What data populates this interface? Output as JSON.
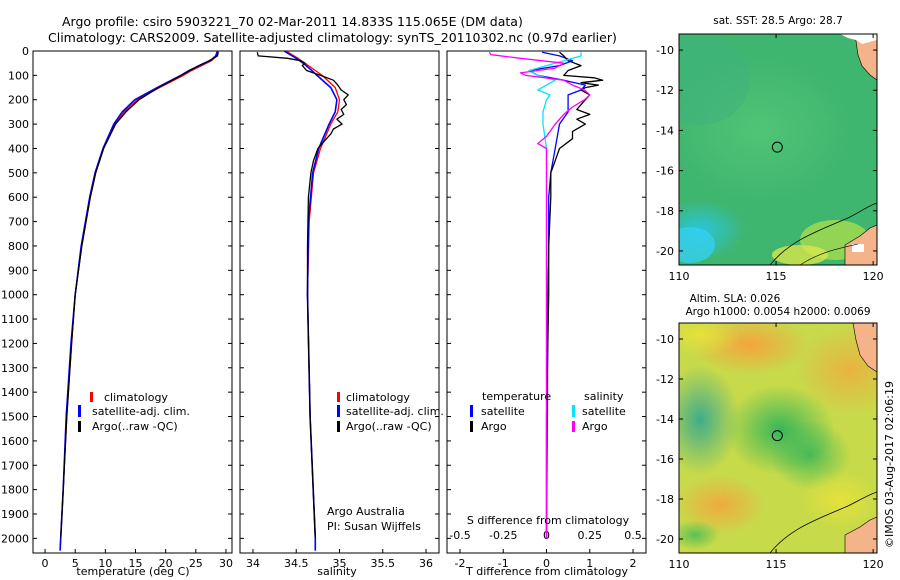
{
  "header": {
    "line1": "Argo profile: csiro 5903221_70 02-Mar-2011 14.833S 115.065E (DM data)",
    "line2": "Climatology: CARS2009. Satellite-adjusted climatology: synTS_20110302.nc (0.97d earlier)"
  },
  "colors": {
    "climatology": "#ff0000",
    "satellite": "#0000ff",
    "argo": "#000000",
    "salinity_satellite": "#00e5ff",
    "salinity_argo": "#ff00ff"
  },
  "chart_data": [
    {
      "type": "line",
      "id": "temperature",
      "xlabel": "temperature (deg C)",
      "ylabel": "",
      "xlim": [
        -2,
        31
      ],
      "ylim": [
        2060,
        0
      ],
      "xticks": [
        0,
        5,
        10,
        15,
        20,
        25,
        30
      ],
      "yticks": [
        0,
        100,
        200,
        300,
        400,
        500,
        600,
        700,
        800,
        900,
        1000,
        1100,
        1200,
        1300,
        1400,
        1500,
        1600,
        1700,
        1800,
        1900,
        2000
      ],
      "legend": [
        "climatology",
        "satellite-adj. clim.",
        "Argo(..raw -QC)"
      ],
      "legend_location": "lower-right",
      "series": [
        {
          "name": "climatology",
          "depth": [
            0,
            20,
            40,
            60,
            80,
            100,
            150,
            200,
            250,
            300,
            400,
            500,
            600,
            800,
            1000,
            1200,
            1500,
            1800,
            2000,
            2050
          ],
          "values": [
            28.8,
            28.5,
            27.6,
            26.0,
            24.3,
            22.9,
            19.0,
            15.3,
            13.1,
            11.6,
            9.7,
            8.4,
            7.5,
            6.1,
            5.0,
            4.4,
            3.6,
            3.0,
            2.6,
            2.5
          ]
        },
        {
          "name": "satellite-adj. clim.",
          "depth": [
            0,
            20,
            40,
            60,
            80,
            100,
            150,
            200,
            250,
            300,
            400,
            500,
            600,
            800,
            1000,
            1200,
            1500,
            1800,
            2000,
            2050
          ],
          "values": [
            28.6,
            28.3,
            27.4,
            25.6,
            23.9,
            22.5,
            18.6,
            14.9,
            12.8,
            11.4,
            9.6,
            8.3,
            7.4,
            6.0,
            5.0,
            4.3,
            3.5,
            3.0,
            2.6,
            2.5
          ]
        },
        {
          "name": "Argo(..raw -QC)",
          "depth": [
            5,
            20,
            40,
            60,
            80,
            100,
            150,
            200,
            250,
            300,
            400,
            500,
            600,
            800,
            1000,
            1200,
            1500,
            1800,
            2000
          ],
          "values": [
            28.7,
            28.6,
            27.2,
            25.5,
            24.0,
            22.6,
            18.8,
            15.6,
            13.4,
            11.7,
            9.7,
            8.4,
            7.5,
            6.1,
            5.0,
            4.4,
            3.6,
            3.0,
            2.6
          ]
        }
      ]
    },
    {
      "type": "line",
      "id": "salinity",
      "xlabel": "salinity",
      "xlim": [
        33.85,
        36.15
      ],
      "ylim": [
        2060,
        0
      ],
      "xticks": [
        34,
        34.5,
        35,
        35.5,
        36
      ],
      "legend": [
        "climatology",
        "satellite-adj. clim.",
        "Argo(..raw -QC)"
      ],
      "legend_location": "lower-right",
      "annotation": [
        "Argo Australia",
        "PI: Susan Wijffels"
      ],
      "series": [
        {
          "name": "climatology",
          "depth": [
            0,
            30,
            50,
            80,
            100,
            150,
            200,
            250,
            300,
            400,
            500,
            700,
            1000,
            1500,
            2000,
            2050
          ],
          "values": [
            34.38,
            34.52,
            34.6,
            34.72,
            34.8,
            34.95,
            35.0,
            34.98,
            34.9,
            34.78,
            34.7,
            34.65,
            34.63,
            34.66,
            34.72,
            34.72
          ]
        },
        {
          "name": "satellite-adj. clim.",
          "depth": [
            0,
            30,
            50,
            80,
            100,
            150,
            200,
            250,
            300,
            400,
            500,
            700,
            1000,
            1500,
            2000,
            2050
          ],
          "values": [
            34.36,
            34.5,
            34.58,
            34.68,
            34.74,
            34.9,
            34.97,
            34.95,
            34.88,
            34.76,
            34.69,
            34.64,
            34.63,
            34.66,
            34.72,
            34.72
          ]
        },
        {
          "name": "Argo(..raw -QC)",
          "depth": [
            5,
            20,
            30,
            40,
            50,
            60,
            80,
            100,
            120,
            140,
            160,
            180,
            200,
            220,
            240,
            260,
            280,
            300,
            320,
            340,
            360,
            380,
            400,
            450,
            500,
            600,
            800,
            1000,
            1500,
            2000
          ],
          "values": [
            34.05,
            34.06,
            34.4,
            34.55,
            34.6,
            34.57,
            34.62,
            34.78,
            34.93,
            34.98,
            35.02,
            35.1,
            35.05,
            35.08,
            35.02,
            35.05,
            34.97,
            35.03,
            34.93,
            34.9,
            34.85,
            34.8,
            34.75,
            34.7,
            34.67,
            34.64,
            34.63,
            34.63,
            34.66,
            34.72
          ]
        }
      ]
    },
    {
      "type": "line",
      "id": "difference",
      "xlabel": "T difference from climatology",
      "xlabel_top": "S difference from climatology",
      "xlim": [
        -2.3,
        2.3
      ],
      "ylim": [
        2060,
        0
      ],
      "xticks_T": [
        -2,
        -1,
        0,
        1,
        2
      ],
      "xticks_S": [
        -0.5,
        -0.25,
        0,
        0.25,
        0.5
      ],
      "s_per_t": 0.25,
      "legend": {
        "temperature_title": "temperature",
        "salinity_title": "salinity",
        "temperature_items": [
          "satellite",
          "Argo"
        ],
        "salinity_items": [
          "satellite",
          "Argo"
        ]
      },
      "series": [
        {
          "name": "temperature satellite",
          "unit": "T",
          "depth": [
            5,
            20,
            40,
            60,
            80,
            100,
            120,
            140,
            160,
            180,
            200,
            250,
            300,
            400,
            500,
            600,
            800,
            1000,
            1500,
            2000
          ],
          "values": [
            -0.1,
            0.3,
            0.6,
            0.3,
            -0.4,
            -0.2,
            0.4,
            0.9,
            0.8,
            0.5,
            0.5,
            0.5,
            0.3,
            0.2,
            0.1,
            0.05,
            0.05,
            0.03,
            0.02,
            0.0
          ]
        },
        {
          "name": "temperature Argo",
          "unit": "T",
          "depth": [
            5,
            20,
            40,
            60,
            80,
            100,
            110,
            120,
            130,
            140,
            150,
            160,
            180,
            200,
            220,
            240,
            260,
            280,
            300,
            330,
            360,
            400,
            450,
            500,
            600,
            800,
            1000,
            1500,
            2000
          ],
          "values": [
            0.3,
            0.4,
            0.5,
            0.8,
            0.5,
            0.4,
            1.1,
            1.3,
            0.8,
            1.2,
            0.9,
            0.8,
            1.0,
            0.9,
            0.8,
            0.7,
            1.0,
            0.7,
            0.9,
            0.6,
            0.6,
            0.3,
            0.2,
            0.1,
            0.1,
            0.05,
            0.05,
            0.0,
            0.0
          ]
        },
        {
          "name": "salinity satellite",
          "unit": "S",
          "depth": [
            5,
            20,
            40,
            60,
            80,
            100,
            120,
            140,
            160,
            180,
            200,
            250,
            300,
            400,
            500,
            700,
            1000,
            1500,
            2000
          ],
          "values": [
            0.2,
            0.2,
            0.1,
            0.0,
            -0.1,
            -0.05,
            0.05,
            0.0,
            -0.05,
            0.02,
            0.0,
            -0.02,
            -0.02,
            0.0,
            0.0,
            0.0,
            0.0,
            0.0,
            0.0
          ]
        },
        {
          "name": "salinity Argo",
          "unit": "S",
          "depth": [
            5,
            15,
            30,
            50,
            70,
            90,
            100,
            120,
            140,
            160,
            180,
            200,
            230,
            260,
            300,
            350,
            380,
            400,
            450,
            500,
            700,
            1000,
            1500,
            2000
          ],
          "values": [
            -0.33,
            -0.32,
            -0.15,
            0.1,
            0.05,
            -0.15,
            -0.12,
            0.1,
            0.15,
            0.22,
            0.25,
            0.22,
            0.15,
            0.1,
            0.05,
            0.0,
            -0.05,
            0.0,
            0.0,
            0.0,
            0.0,
            0.0,
            0.0,
            0.0
          ]
        }
      ]
    },
    {
      "type": "heatmap",
      "id": "sst-map",
      "title": "sat. SST: 28.5 Argo: 28.7",
      "xlim": [
        110,
        120.2
      ],
      "ylim": [
        -20.7,
        -9.2
      ],
      "xticks": [
        110,
        115,
        120
      ],
      "yticks": [
        -10,
        -12,
        -14,
        -16,
        -18,
        -20
      ],
      "argo_position": {
        "lon": 115.065,
        "lat": -14.833
      }
    },
    {
      "type": "heatmap",
      "id": "sla-map",
      "title_line1": "Altim. SLA: 0.026",
      "title_line2": "Argo h1000: 0.0054 h2000: 0.0069",
      "xlim": [
        110,
        120.2
      ],
      "ylim": [
        -20.7,
        -9.2
      ],
      "xticks": [
        110,
        115,
        120
      ],
      "yticks": [
        -10,
        -12,
        -14,
        -16,
        -18,
        -20
      ],
      "argo_position": {
        "lon": 115.065,
        "lat": -14.833
      }
    }
  ],
  "credit": "©IMOS 03-Aug-2017 02:06:19"
}
